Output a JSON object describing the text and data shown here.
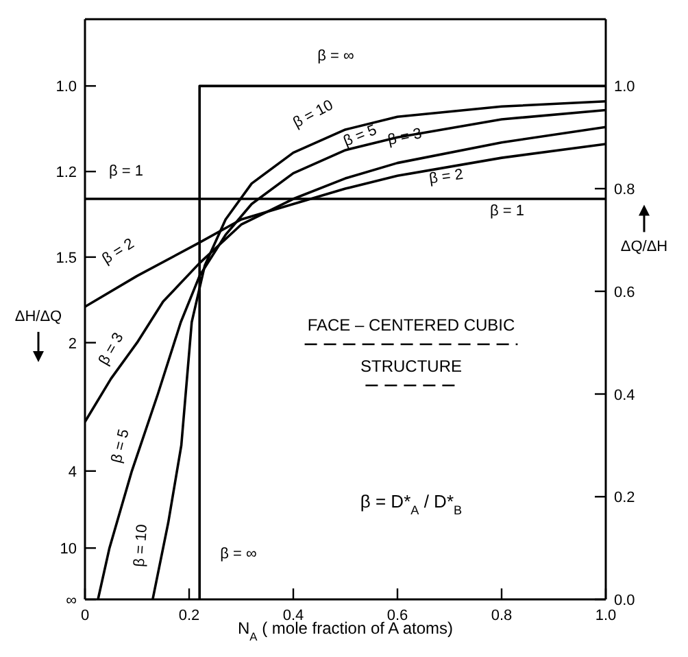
{
  "chart_data": {
    "type": "line",
    "xlabel": "N$_{A}$ ( mole fraction of A atoms)",
    "ylabel": "ΔQ/ΔH",
    "y2label": "ΔH/ΔQ",
    "xlim": [
      0,
      1
    ],
    "xticks": [
      0,
      0.2,
      0.4,
      0.6,
      0.8,
      {
        "value": 1,
        "label": "1.0"
      }
    ],
    "ylim": [
      0,
      1.13
    ],
    "yticks": [
      {
        "value": 0,
        "label": "0.0"
      },
      0.2,
      0.4,
      0.6,
      0.8,
      {
        "value": 1,
        "label": "1.0"
      }
    ],
    "marker": "none",
    "line_style": "solid",
    "series": [
      {
        "color": "#000000",
        "x": [
          0.22,
          0.22,
          1.0
        ],
        "values": [
          0,
          1,
          1
        ]
      },
      {
        "color": "#000000",
        "x": [
          0,
          1
        ],
        "values": [
          0.78,
          0.78
        ]
      },
      {
        "color": "#000000",
        "x": [
          0,
          0.1,
          0.22,
          0.3,
          0.4,
          0.5,
          0.6,
          0.8,
          1.0
        ],
        "values": [
          0.57,
          0.63,
          0.695,
          0.74,
          0.77,
          0.8,
          0.825,
          0.86,
          0.887
        ]
      },
      {
        "color": "#000000",
        "x": [
          0,
          0.05,
          0.1,
          0.15,
          0.22,
          0.3,
          0.4,
          0.5,
          0.6,
          0.8,
          1.0
        ],
        "values": [
          0.346,
          0.43,
          0.5,
          0.58,
          0.655,
          0.73,
          0.78,
          0.82,
          0.85,
          0.89,
          0.92
        ]
      },
      {
        "color": "#000000",
        "x": [
          0.025,
          0.047,
          0.09,
          0.14,
          0.184,
          0.22,
          0.27,
          0.32,
          0.4,
          0.5,
          0.6,
          0.8,
          1.0
        ],
        "values": [
          0,
          0.1,
          0.25,
          0.4,
          0.54,
          0.63,
          0.71,
          0.77,
          0.83,
          0.875,
          0.9,
          0.935,
          0.953
        ]
      },
      {
        "color": "#000000",
        "x": [
          0.13,
          0.16,
          0.185,
          0.205,
          0.23,
          0.27,
          0.32,
          0.4,
          0.5,
          0.6,
          0.8,
          1.0
        ],
        "values": [
          0,
          0.15,
          0.3,
          0.54,
          0.65,
          0.74,
          0.81,
          0.87,
          0.915,
          0.94,
          0.96,
          0.97
        ]
      }
    ],
    "annotations": [
      "β = ∞",
      "β = ∞",
      "β = 1",
      "β = 1",
      "β = 10",
      "β = 5",
      "β = 3",
      "β = 2",
      "β = 2",
      "β = 3",
      "β = 5",
      "β = 10",
      "FACE – CENTERED CUBIC",
      "STRUCTURE",
      "β = D*$_{A}$ / D*$_{B}$",
      "1.0",
      "1.2",
      "1.5",
      "2",
      "4",
      "10",
      "∞"
    ]
  }
}
